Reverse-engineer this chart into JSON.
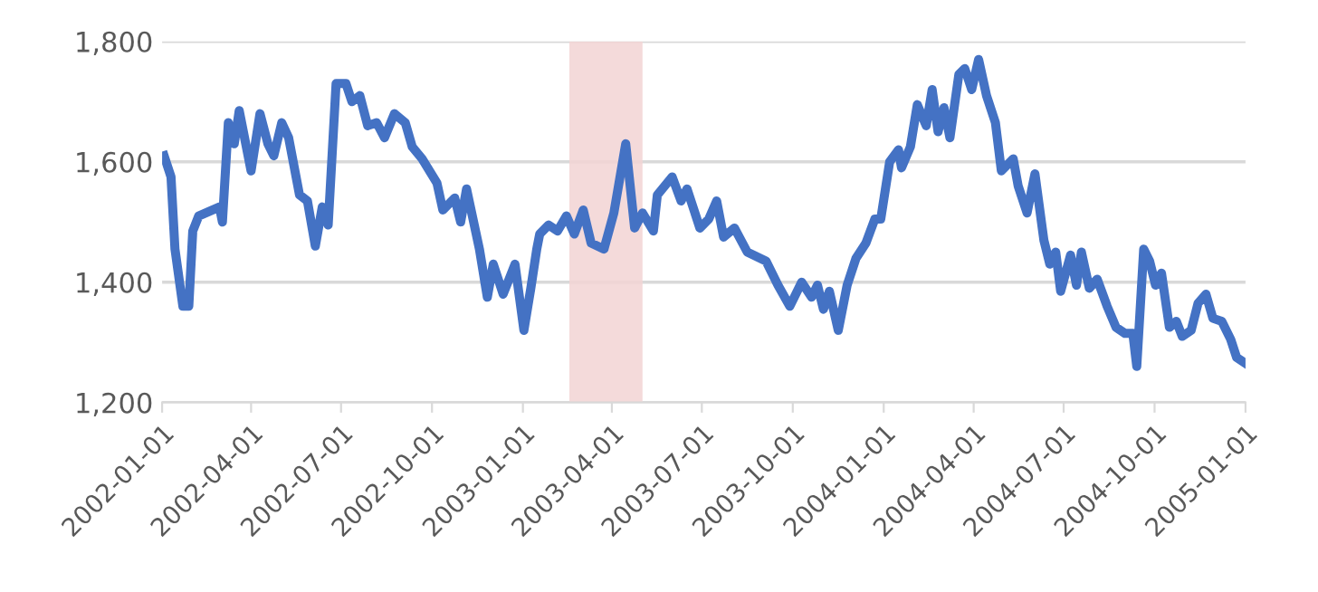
{
  "chart_data": {
    "type": "line",
    "x": [
      "2002-01-03",
      "2002-01-10",
      "2002-01-14",
      "2002-01-22",
      "2002-01-28",
      "2002-02-01",
      "2002-02-07",
      "2002-02-28",
      "2002-03-03",
      "2002-03-09",
      "2002-03-15",
      "2002-03-20",
      "2002-04-01",
      "2002-04-10",
      "2002-04-18",
      "2002-04-24",
      "2002-05-02",
      "2002-05-09",
      "2002-05-20",
      "2002-05-28",
      "2002-06-05",
      "2002-06-12",
      "2002-06-18",
      "2002-06-26",
      "2002-07-06",
      "2002-07-12",
      "2002-07-20",
      "2002-07-28",
      "2002-08-06",
      "2002-08-14",
      "2002-08-24",
      "2002-09-04",
      "2002-09-11",
      "2002-09-21",
      "2002-10-06",
      "2002-10-12",
      "2002-10-24",
      "2002-10-30",
      "2002-11-05",
      "2002-11-18",
      "2002-11-26",
      "2002-12-02",
      "2002-12-12",
      "2002-12-24",
      "2003-01-02",
      "2003-01-09",
      "2003-01-15",
      "2003-01-18",
      "2003-01-27",
      "2003-02-05",
      "2003-02-14",
      "2003-02-22",
      "2003-03-03",
      "2003-03-11",
      "2003-03-24",
      "2003-04-03",
      "2003-04-15",
      "2003-04-24",
      "2003-05-02",
      "2003-05-13",
      "2003-05-17",
      "2003-06-01",
      "2003-06-10",
      "2003-06-16",
      "2003-06-29",
      "2003-07-08",
      "2003-07-16",
      "2003-07-23",
      "2003-08-03",
      "2003-08-16",
      "2003-09-04",
      "2003-09-16",
      "2003-09-28",
      "2003-10-10",
      "2003-10-20",
      "2003-10-26",
      "2003-11-01",
      "2003-11-07",
      "2003-11-16",
      "2003-11-25",
      "2003-12-04",
      "2003-12-14",
      "2003-12-23",
      "2003-12-29",
      "2004-01-07",
      "2004-01-16",
      "2004-01-19",
      "2004-01-28",
      "2004-02-04",
      "2004-02-13",
      "2004-02-19",
      "2004-02-25",
      "2004-03-02",
      "2004-03-08",
      "2004-03-17",
      "2004-03-23",
      "2004-03-30",
      "2004-04-06",
      "2004-04-14",
      "2004-04-23",
      "2004-04-29",
      "2004-05-11",
      "2004-05-16",
      "2004-05-25",
      "2004-06-02",
      "2004-06-11",
      "2004-06-17",
      "2004-06-23",
      "2004-06-28",
      "2004-07-08",
      "2004-07-14",
      "2004-07-19",
      "2004-07-27",
      "2004-08-04",
      "2004-08-14",
      "2004-08-23",
      "2004-09-01",
      "2004-09-09",
      "2004-09-13",
      "2004-09-20",
      "2004-09-26",
      "2004-10-02",
      "2004-10-08",
      "2004-10-16",
      "2004-10-23",
      "2004-10-29",
      "2004-11-07",
      "2004-11-14",
      "2004-11-22",
      "2004-11-29",
      "2004-12-08",
      "2004-12-17",
      "2004-12-23",
      "2005-01-01"
    ],
    "series": [
      {
        "color": "#4472c4",
        "values": [
          1610,
          1575,
          1455,
          1360,
          1360,
          1485,
          1510,
          1525,
          1500,
          1665,
          1630,
          1685,
          1585,
          1680,
          1630,
          1610,
          1665,
          1640,
          1545,
          1535,
          1460,
          1525,
          1495,
          1730,
          1730,
          1700,
          1710,
          1660,
          1665,
          1640,
          1680,
          1665,
          1625,
          1605,
          1565,
          1520,
          1540,
          1500,
          1555,
          1455,
          1375,
          1430,
          1380,
          1430,
          1320,
          1390,
          1455,
          1480,
          1495,
          1485,
          1510,
          1480,
          1520,
          1465,
          1455,
          1515,
          1630,
          1490,
          1515,
          1485,
          1545,
          1575,
          1535,
          1555,
          1490,
          1505,
          1535,
          1475,
          1490,
          1450,
          1435,
          1395,
          1360,
          1400,
          1375,
          1395,
          1355,
          1385,
          1320,
          1395,
          1440,
          1465,
          1505,
          1505,
          1600,
          1620,
          1590,
          1625,
          1695,
          1660,
          1720,
          1650,
          1690,
          1640,
          1745,
          1755,
          1720,
          1770,
          1710,
          1665,
          1585,
          1605,
          1560,
          1515,
          1580,
          1470,
          1430,
          1450,
          1385,
          1445,
          1395,
          1450,
          1390,
          1405,
          1360,
          1325,
          1315,
          1315,
          1260,
          1455,
          1435,
          1395,
          1415,
          1325,
          1335,
          1310,
          1320,
          1365,
          1380,
          1340,
          1335,
          1305,
          1275,
          1265
        ]
      }
    ],
    "xlim": [
      "2002-01-01",
      "2005-01-01"
    ],
    "xticks": [
      "2002-01-01",
      "2002-04-01",
      "2002-07-01",
      "2002-10-01",
      "2003-01-01",
      "2003-04-01",
      "2003-07-01",
      "2003-10-01",
      "2004-01-01",
      "2004-04-01",
      "2004-07-01",
      "2004-10-01",
      "2005-01-01"
    ],
    "ylim": [
      1200,
      1800
    ],
    "yticks": [
      {
        "value": 1200,
        "label": "1,200"
      },
      {
        "value": 1400,
        "label": "1,400"
      },
      {
        "value": 1600,
        "label": "1,600"
      },
      {
        "value": 1800,
        "label": "1,800"
      }
    ],
    "bands": [
      {
        "axis": "x",
        "from": "2003-02-17",
        "to": "2003-05-02",
        "color": "#f2d4d4"
      }
    ],
    "grid": "y",
    "legend": false,
    "marker": "none",
    "line_style": "solid"
  }
}
